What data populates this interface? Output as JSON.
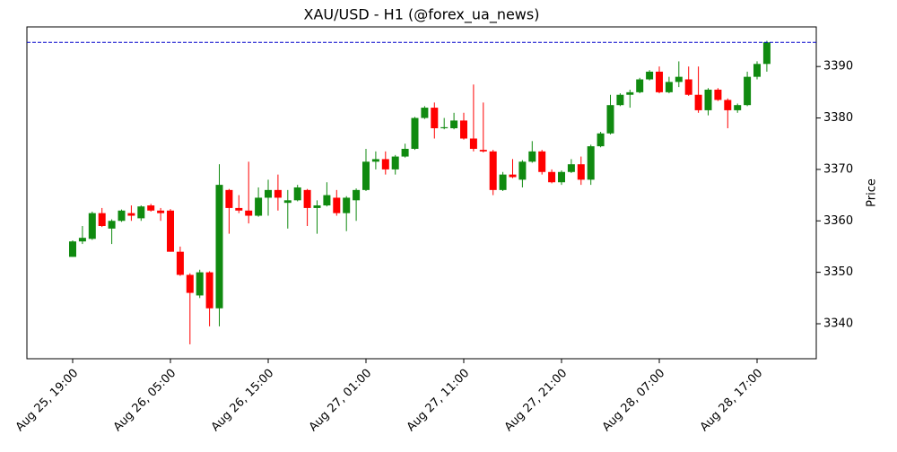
{
  "chart_data": {
    "type": "candlestick",
    "title": "XAU/USD - H1 (@forex_ua_news)",
    "y_label": "Price",
    "x": [
      "Aug 25, 19:00",
      "Aug 25, 20:00",
      "Aug 25, 21:00",
      "Aug 25, 22:00",
      "Aug 25, 23:00",
      "Aug 26, 00:00",
      "Aug 26, 01:00",
      "Aug 26, 02:00",
      "Aug 26, 03:00",
      "Aug 26, 04:00",
      "Aug 26, 05:00",
      "Aug 26, 06:00",
      "Aug 26, 07:00",
      "Aug 26, 08:00",
      "Aug 26, 09:00",
      "Aug 26, 10:00",
      "Aug 26, 11:00",
      "Aug 26, 12:00",
      "Aug 26, 13:00",
      "Aug 26, 14:00",
      "Aug 26, 15:00",
      "Aug 26, 16:00",
      "Aug 26, 17:00",
      "Aug 26, 18:00",
      "Aug 26, 19:00",
      "Aug 26, 20:00",
      "Aug 26, 21:00",
      "Aug 26, 22:00",
      "Aug 26, 23:00",
      "Aug 27, 00:00",
      "Aug 27, 01:00",
      "Aug 27, 02:00",
      "Aug 27, 03:00",
      "Aug 27, 04:00",
      "Aug 27, 05:00",
      "Aug 27, 06:00",
      "Aug 27, 07:00",
      "Aug 27, 08:00",
      "Aug 27, 09:00",
      "Aug 27, 10:00",
      "Aug 27, 11:00",
      "Aug 27, 12:00",
      "Aug 27, 13:00",
      "Aug 27, 14:00",
      "Aug 27, 15:00",
      "Aug 27, 16:00",
      "Aug 27, 17:00",
      "Aug 27, 18:00",
      "Aug 27, 19:00",
      "Aug 27, 20:00",
      "Aug 27, 21:00",
      "Aug 27, 22:00",
      "Aug 27, 23:00",
      "Aug 28, 00:00",
      "Aug 28, 01:00",
      "Aug 28, 02:00",
      "Aug 28, 03:00",
      "Aug 28, 04:00",
      "Aug 28, 05:00",
      "Aug 28, 06:00",
      "Aug 28, 07:00",
      "Aug 28, 08:00",
      "Aug 28, 09:00",
      "Aug 28, 10:00",
      "Aug 28, 11:00",
      "Aug 28, 12:00",
      "Aug 28, 13:00",
      "Aug 28, 14:00",
      "Aug 28, 15:00",
      "Aug 28, 16:00",
      "Aug 28, 17:00",
      "Aug 28, 18:00"
    ],
    "open": [
      3353,
      3356,
      3356.5,
      3361.5,
      3358.5,
      3360,
      3361.5,
      3360.5,
      3363,
      3362,
      3362,
      3354,
      3349.5,
      3345.5,
      3350,
      3343,
      3366,
      3362.5,
      3362,
      3361,
      3364.5,
      3366,
      3363.5,
      3364,
      3366,
      3362.5,
      3363,
      3364.5,
      3361.5,
      3364,
      3366,
      3371.5,
      3372,
      3370,
      3372.5,
      3374,
      3380,
      3382,
      3378,
      3378,
      3379.5,
      3376,
      3373.8,
      3373.5,
      3366,
      3369,
      3368,
      3371.5,
      3373.5,
      3369.5,
      3367.5,
      3369.5,
      3371,
      3368,
      3374.5,
      3377,
      3382.5,
      3384.5,
      3385,
      3387.5,
      3389,
      3385,
      3387,
      3387.5,
      3384.5,
      3381.5,
      3385.5,
      3383.5,
      3381.5,
      3382.5,
      3388,
      3390.5
    ],
    "high": [
      3356.2,
      3359,
      3361.8,
      3362.5,
      3360.3,
      3362.2,
      3363,
      3363,
      3363.3,
      3362.5,
      3362.3,
      3355,
      3349.8,
      3350.5,
      3350.2,
      3371,
      3366.2,
      3365,
      3371.5,
      3366.5,
      3368,
      3369,
      3366,
      3367,
      3366.2,
      3364,
      3367.5,
      3366,
      3364.8,
      3366.3,
      3374,
      3373.5,
      3373.5,
      3372.8,
      3375,
      3380.2,
      3382.3,
      3383,
      3380,
      3381,
      3381,
      3386.5,
      3383,
      3373.8,
      3369.5,
      3372,
      3371.8,
      3375.5,
      3373.8,
      3370,
      3369.8,
      3372,
      3372.5,
      3374.8,
      3377.3,
      3384.5,
      3384.8,
      3385.5,
      3387.8,
      3389.3,
      3390,
      3388,
      3391,
      3390,
      3390,
      3385.8,
      3385.8,
      3383.8,
      3382.8,
      3389,
      3391,
      3395
    ],
    "low": [
      3353,
      3355.5,
      3356.3,
      3358.8,
      3355.5,
      3359.8,
      3360,
      3360,
      3361.8,
      3360,
      3354,
      3349.3,
      3336,
      3345,
      3339.5,
      3339.5,
      3357.5,
      3361.5,
      3359.5,
      3360.8,
      3361,
      3362,
      3358.5,
      3363.8,
      3359,
      3357.5,
      3362.8,
      3361,
      3358,
      3360,
      3365.8,
      3370,
      3369,
      3369,
      3372.3,
      3373.8,
      3379.8,
      3376,
      3377.8,
      3377.8,
      3375.8,
      3373.5,
      3373.3,
      3365,
      3365.8,
      3368.3,
      3366.5,
      3371.3,
      3369,
      3367.3,
      3367,
      3369.3,
      3367,
      3367,
      3374.3,
      3376.8,
      3382.3,
      3382,
      3384.8,
      3387.3,
      3384.8,
      3384.8,
      3386,
      3384.3,
      3381,
      3380.5,
      3383.3,
      3378,
      3381,
      3382.3,
      3387.5,
      3389
    ],
    "close": [
      3356,
      3356.7,
      3361.5,
      3359,
      3360,
      3362,
      3361,
      3362.8,
      3362,
      3361.5,
      3354,
      3349.5,
      3346,
      3350,
      3343,
      3367,
      3362.5,
      3362,
      3361,
      3364.5,
      3366,
      3364.5,
      3364,
      3366.5,
      3362.5,
      3363,
      3365,
      3361.5,
      3364.5,
      3366,
      3371.5,
      3372,
      3370,
      3372.5,
      3374,
      3380,
      3382,
      3378,
      3378.2,
      3379.5,
      3376,
      3374,
      3373.5,
      3366,
      3369,
      3368.5,
      3371.5,
      3373.5,
      3369.5,
      3367.5,
      3369.5,
      3371,
      3368,
      3374.5,
      3377,
      3382.5,
      3384.5,
      3385,
      3387.5,
      3389,
      3385,
      3387,
      3388,
      3384.5,
      3381.5,
      3385.5,
      3383.5,
      3381.5,
      3382.5,
      3388,
      3390.5,
      3394.7
    ],
    "up_color": "#108a10",
    "down_color": "#ff0000",
    "hline": {
      "value": 3394.7,
      "color": "#0000cc"
    },
    "ylim": [
      3333.2,
      3397.7
    ],
    "yticks": [
      3340,
      3350,
      3360,
      3370,
      3380,
      3390
    ],
    "xticks": [
      "Aug 25, 19:00",
      "Aug 26, 05:00",
      "Aug 26, 15:00",
      "Aug 27, 01:00",
      "Aug 27, 11:00",
      "Aug 27, 21:00",
      "Aug 28, 07:00",
      "Aug 28, 17:00"
    ]
  }
}
